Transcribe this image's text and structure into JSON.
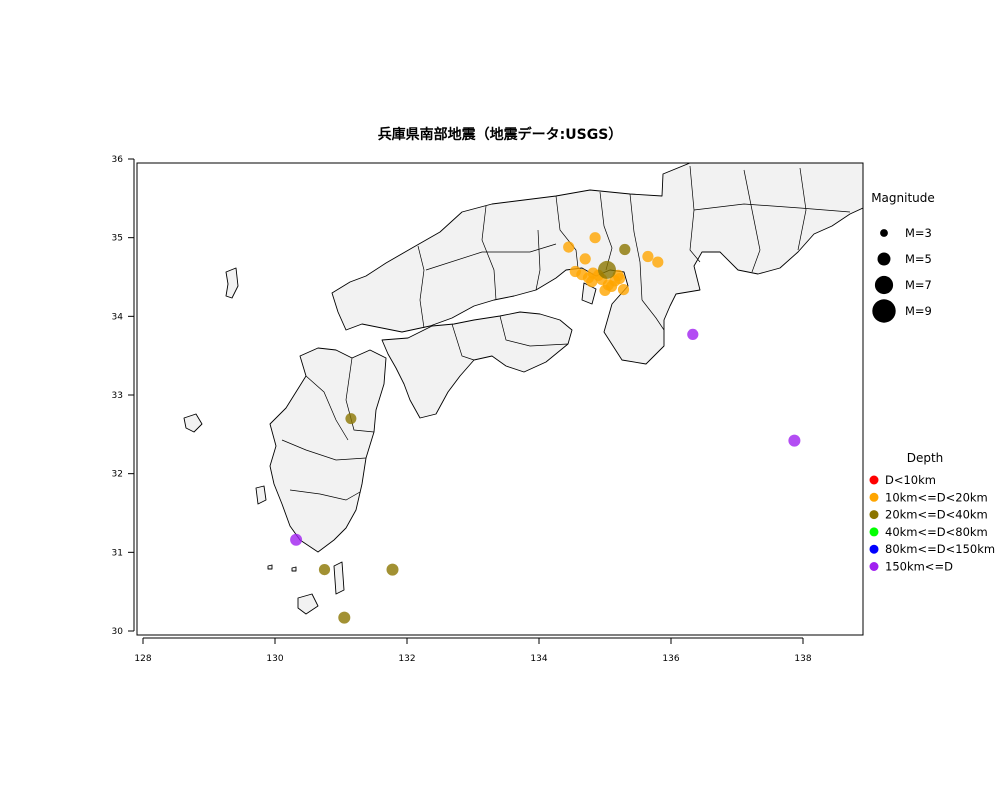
{
  "chart_data": {
    "type": "scatter",
    "title": "兵庫県南部地震（地震データ:USGS）",
    "xlabel": "",
    "ylabel": "",
    "xlim": [
      128,
      139
    ],
    "ylim": [
      30,
      36
    ],
    "x_ticks": [
      "128",
      "130",
      "132",
      "134",
      "136",
      "138"
    ],
    "y_ticks": [
      "30",
      "31",
      "32",
      "33",
      "34",
      "35",
      "36"
    ],
    "grid": false,
    "magnitude_legend": {
      "title": "Magnitude",
      "entries": [
        {
          "label": "M=3",
          "mag": 3
        },
        {
          "label": "M=5",
          "mag": 5
        },
        {
          "label": "M=7",
          "mag": 7
        },
        {
          "label": "M=9",
          "mag": 9
        }
      ]
    },
    "depth_legend": {
      "title": "Depth",
      "entries": [
        {
          "label": "D<10km",
          "color": "#ff0000"
        },
        {
          "label": "10km<=D<20km",
          "color": "#ffa500"
        },
        {
          "label": "20km<=D<40km",
          "color": "#8b7500"
        },
        {
          "label": "40km<=D<80km",
          "color": "#00ff00"
        },
        {
          "label": "80km<=D<150km",
          "color": "#0000ff"
        },
        {
          "label": "150km<=D",
          "color": "#a020f0"
        }
      ]
    },
    "points": [
      {
        "lon": 134.45,
        "lat": 34.88,
        "mag": 4.3,
        "depth_class": 1
      },
      {
        "lon": 134.85,
        "lat": 35.0,
        "mag": 4.3,
        "depth_class": 1
      },
      {
        "lon": 134.7,
        "lat": 34.73,
        "mag": 4.3,
        "depth_class": 1
      },
      {
        "lon": 135.65,
        "lat": 34.76,
        "mag": 4.3,
        "depth_class": 1
      },
      {
        "lon": 135.8,
        "lat": 34.69,
        "mag": 4.3,
        "depth_class": 1
      },
      {
        "lon": 134.55,
        "lat": 34.57,
        "mag": 4.3,
        "depth_class": 1
      },
      {
        "lon": 134.65,
        "lat": 34.53,
        "mag": 4.3,
        "depth_class": 1
      },
      {
        "lon": 134.75,
        "lat": 34.49,
        "mag": 4.3,
        "depth_class": 1
      },
      {
        "lon": 134.82,
        "lat": 34.55,
        "mag": 4.3,
        "depth_class": 1
      },
      {
        "lon": 134.9,
        "lat": 34.52,
        "mag": 4.3,
        "depth_class": 1
      },
      {
        "lon": 134.8,
        "lat": 34.44,
        "mag": 4.3,
        "depth_class": 1
      },
      {
        "lon": 134.95,
        "lat": 34.47,
        "mag": 4.3,
        "depth_class": 1
      },
      {
        "lon": 135.05,
        "lat": 34.4,
        "mag": 4.3,
        "depth_class": 1
      },
      {
        "lon": 135.15,
        "lat": 34.45,
        "mag": 4.3,
        "depth_class": 1
      },
      {
        "lon": 135.2,
        "lat": 34.52,
        "mag": 4.3,
        "depth_class": 1
      },
      {
        "lon": 135.1,
        "lat": 34.38,
        "mag": 4.3,
        "depth_class": 1
      },
      {
        "lon": 135.0,
        "lat": 34.33,
        "mag": 4.3,
        "depth_class": 1
      },
      {
        "lon": 135.28,
        "lat": 34.34,
        "mag": 4.3,
        "depth_class": 1
      },
      {
        "lon": 135.22,
        "lat": 34.48,
        "mag": 4.3,
        "depth_class": 1
      },
      {
        "lon": 135.03,
        "lat": 34.59,
        "mag": 6.9,
        "depth_class": 2
      },
      {
        "lon": 135.3,
        "lat": 34.85,
        "mag": 4.3,
        "depth_class": 2
      },
      {
        "lon": 131.15,
        "lat": 32.7,
        "mag": 4.2,
        "depth_class": 2
      },
      {
        "lon": 130.75,
        "lat": 30.78,
        "mag": 4.3,
        "depth_class": 2
      },
      {
        "lon": 131.78,
        "lat": 30.78,
        "mag": 4.6,
        "depth_class": 2
      },
      {
        "lon": 131.05,
        "lat": 30.17,
        "mag": 4.6,
        "depth_class": 2
      },
      {
        "lon": 130.32,
        "lat": 31.16,
        "mag": 4.6,
        "depth_class": 5
      },
      {
        "lon": 136.33,
        "lat": 33.77,
        "mag": 4.3,
        "depth_class": 5
      },
      {
        "lon": 137.87,
        "lat": 32.42,
        "mag": 4.6,
        "depth_class": 5
      }
    ]
  }
}
